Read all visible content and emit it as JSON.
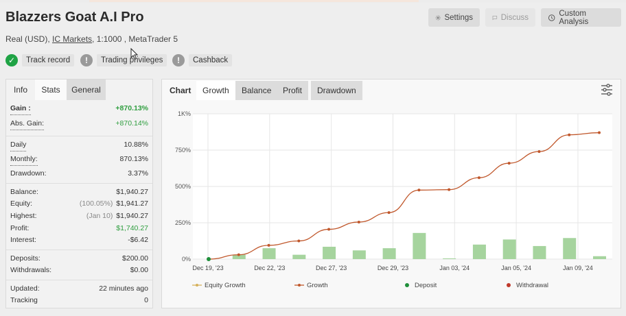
{
  "header": {
    "title": "Blazzers Goat A.I Pro",
    "account_type": "Real (USD),",
    "broker": "IC Markets",
    "leverage_platform": ", 1:1000 , MetaTrader 5"
  },
  "actions": {
    "settings": "Settings",
    "discuss": "Discuss",
    "custom_analysis": "Custom Analysis"
  },
  "badges": {
    "track_record": "Track record",
    "trading_privileges": "Trading privileges",
    "cashback": "Cashback"
  },
  "left_tabs": {
    "info": "Info",
    "stats": "Stats",
    "general": "General"
  },
  "stats": {
    "gain": {
      "label": "Gain :",
      "value": "+870.13%"
    },
    "abs_gain": {
      "label": "Abs. Gain:",
      "value": "+870.14%"
    },
    "daily": {
      "label": "Daily",
      "value": "10.88%"
    },
    "monthly": {
      "label": "Monthly:",
      "value": "870.13%"
    },
    "drawdown": {
      "label": "Drawdown:",
      "value": "3.37%"
    },
    "balance": {
      "label": "Balance:",
      "value": "$1,940.27"
    },
    "equity": {
      "label": "Equity:",
      "note": "(100.05%)",
      "value": "$1,941.27"
    },
    "highest": {
      "label": "Highest:",
      "note": "(Jan 10)",
      "value": "$1,940.27"
    },
    "profit": {
      "label": "Profit:",
      "value": "$1,740.27"
    },
    "interest": {
      "label": "Interest:",
      "value": "-$6.42"
    },
    "deposits": {
      "label": "Deposits:",
      "value": "$200.00"
    },
    "withdrawals": {
      "label": "Withdrawals:",
      "value": "$0.00"
    },
    "updated": {
      "label": "Updated:",
      "value": "22 minutes ago"
    },
    "tracking": {
      "label": "Tracking",
      "value": "0"
    }
  },
  "chart_tabs": {
    "chart": "Chart",
    "growth": "Growth",
    "balance": "Balance",
    "profit": "Profit",
    "drawdown": "Drawdown"
  },
  "icons": {
    "settings": "gear-icon",
    "discuss": "chat-icon",
    "custom_analysis": "clock-icon",
    "track_record": "check-circle-icon",
    "privileges": "warning-circle-icon",
    "cashback": "warning-circle-icon",
    "chart_options": "sliders-icon"
  },
  "colors": {
    "growth_line": "#c0572b",
    "equity_line": "#d6b15a",
    "bars": "#a6d49e",
    "deposit": "#1f8f3a",
    "withdrawal": "#c0392b",
    "positive": "#2f9e3f"
  },
  "chart_data": {
    "type": "line",
    "x_tick_labels": [
      "Dec 19, '23",
      "Dec 22, '23",
      "Dec 27, '23",
      "Dec 29, '23",
      "Jan 03, '24",
      "Jan 05, '24",
      "Jan 09, '24"
    ],
    "y_tick_labels": [
      "0%",
      "250%",
      "500%",
      "750%",
      "1K%"
    ],
    "ylim": [
      0,
      1000
    ],
    "grid": true,
    "legend_position": "bottom",
    "series": [
      {
        "name": "Growth",
        "type": "line",
        "values": [
          0,
          30,
          95,
          125,
          205,
          255,
          320,
          475,
          478,
          560,
          660,
          740,
          855,
          870
        ]
      },
      {
        "name": "Equity Growth",
        "type": "line",
        "values": []
      },
      {
        "name": "Deposit",
        "type": "marker",
        "values": [
          0
        ]
      },
      {
        "name": "Withdrawal",
        "type": "marker",
        "values": []
      }
    ],
    "daily_bars": [
      0,
      30,
      75,
      30,
      85,
      60,
      75,
      180,
      5,
      100,
      135,
      90,
      145,
      20
    ]
  }
}
